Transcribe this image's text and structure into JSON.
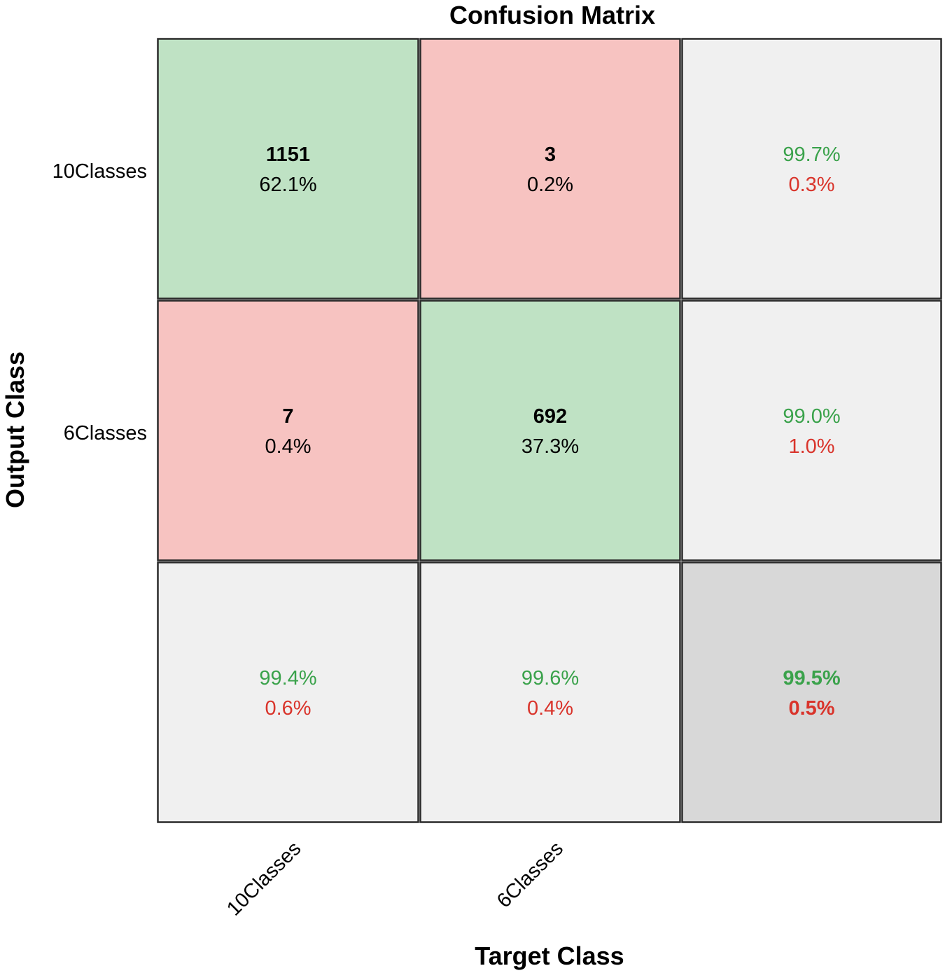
{
  "chart_data": {
    "type": "heatmap",
    "title": "Confusion Matrix",
    "xlabel": "Target Class",
    "ylabel": "Output Class",
    "row_labels": [
      "10Classes",
      "6Classes"
    ],
    "col_labels": [
      "10Classes",
      "6Classes"
    ],
    "matrix": [
      [
        {
          "count": "1151",
          "percent": "62.1%"
        },
        {
          "count": "3",
          "percent": "0.2%"
        }
      ],
      [
        {
          "count": "7",
          "percent": "0.4%"
        },
        {
          "count": "692",
          "percent": "37.3%"
        }
      ]
    ],
    "row_summary": [
      {
        "correct": "99.7%",
        "error": "0.3%"
      },
      {
        "correct": "99.0%",
        "error": "1.0%"
      }
    ],
    "col_summary": [
      {
        "correct": "99.4%",
        "error": "0.6%"
      },
      {
        "correct": "99.6%",
        "error": "0.4%"
      }
    ],
    "overall": {
      "correct": "99.5%",
      "error": "0.5%"
    },
    "colors": {
      "correct_cell": "#bfe2c4",
      "error_cell": "#f7c3c1",
      "summary_cell": "#f0f0f0",
      "overall_cell": "#d8d8d8",
      "correct_text": "#3aa24b",
      "error_text": "#d9342b",
      "grid_line": "#2a2a2a"
    }
  }
}
